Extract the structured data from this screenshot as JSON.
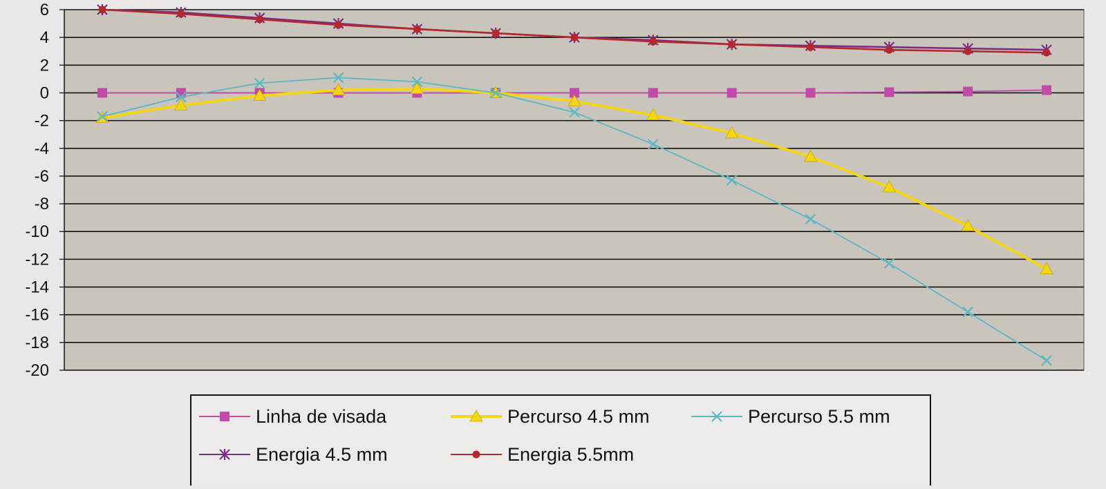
{
  "chart_data": {
    "type": "line",
    "title": "",
    "xlabel": "",
    "ylabel": "",
    "ylim": [
      -20,
      6
    ],
    "yticks": [
      6,
      4,
      2,
      0,
      -2,
      -4,
      -6,
      -8,
      -10,
      -12,
      -14,
      -16,
      -18,
      -20
    ],
    "x_count": 13,
    "grid": true,
    "legend_position": "bottom",
    "plot_background": "#c9c4bc",
    "series": [
      {
        "name": "Linha de visada",
        "color": "#c24aa8",
        "marker": "square",
        "values": [
          0,
          0,
          0,
          0,
          0,
          0,
          0,
          0,
          0,
          0,
          0.05,
          0.1,
          0.2
        ]
      },
      {
        "name": "Percurso 4.5 mm",
        "color": "#f2d516",
        "marker": "triangle",
        "values": [
          -1.8,
          -0.9,
          -0.2,
          0.2,
          0.3,
          0,
          -0.6,
          -1.6,
          -2.9,
          -4.6,
          -6.8,
          -9.6,
          -12.7
        ]
      },
      {
        "name": "Percurso 5.5 mm",
        "color": "#5cb8c4",
        "marker": "x",
        "values": [
          -1.7,
          -0.3,
          0.7,
          1.1,
          0.8,
          0,
          -1.4,
          -3.7,
          -6.3,
          -9.1,
          -12.3,
          -15.8,
          -19.3
        ]
      },
      {
        "name": "Energia 4.5 mm",
        "color": "#7a2c86",
        "marker": "star",
        "values": [
          6,
          5.8,
          5.4,
          5,
          4.6,
          4.3,
          4,
          3.8,
          3.5,
          3.4,
          3.3,
          3.2,
          3.1
        ]
      },
      {
        "name": "Energia 5.5mm",
        "color": "#b3282d",
        "marker": "circle",
        "values": [
          6,
          5.7,
          5.3,
          4.9,
          4.6,
          4.3,
          4,
          3.7,
          3.5,
          3.3,
          3.1,
          3,
          2.9
        ]
      }
    ]
  }
}
